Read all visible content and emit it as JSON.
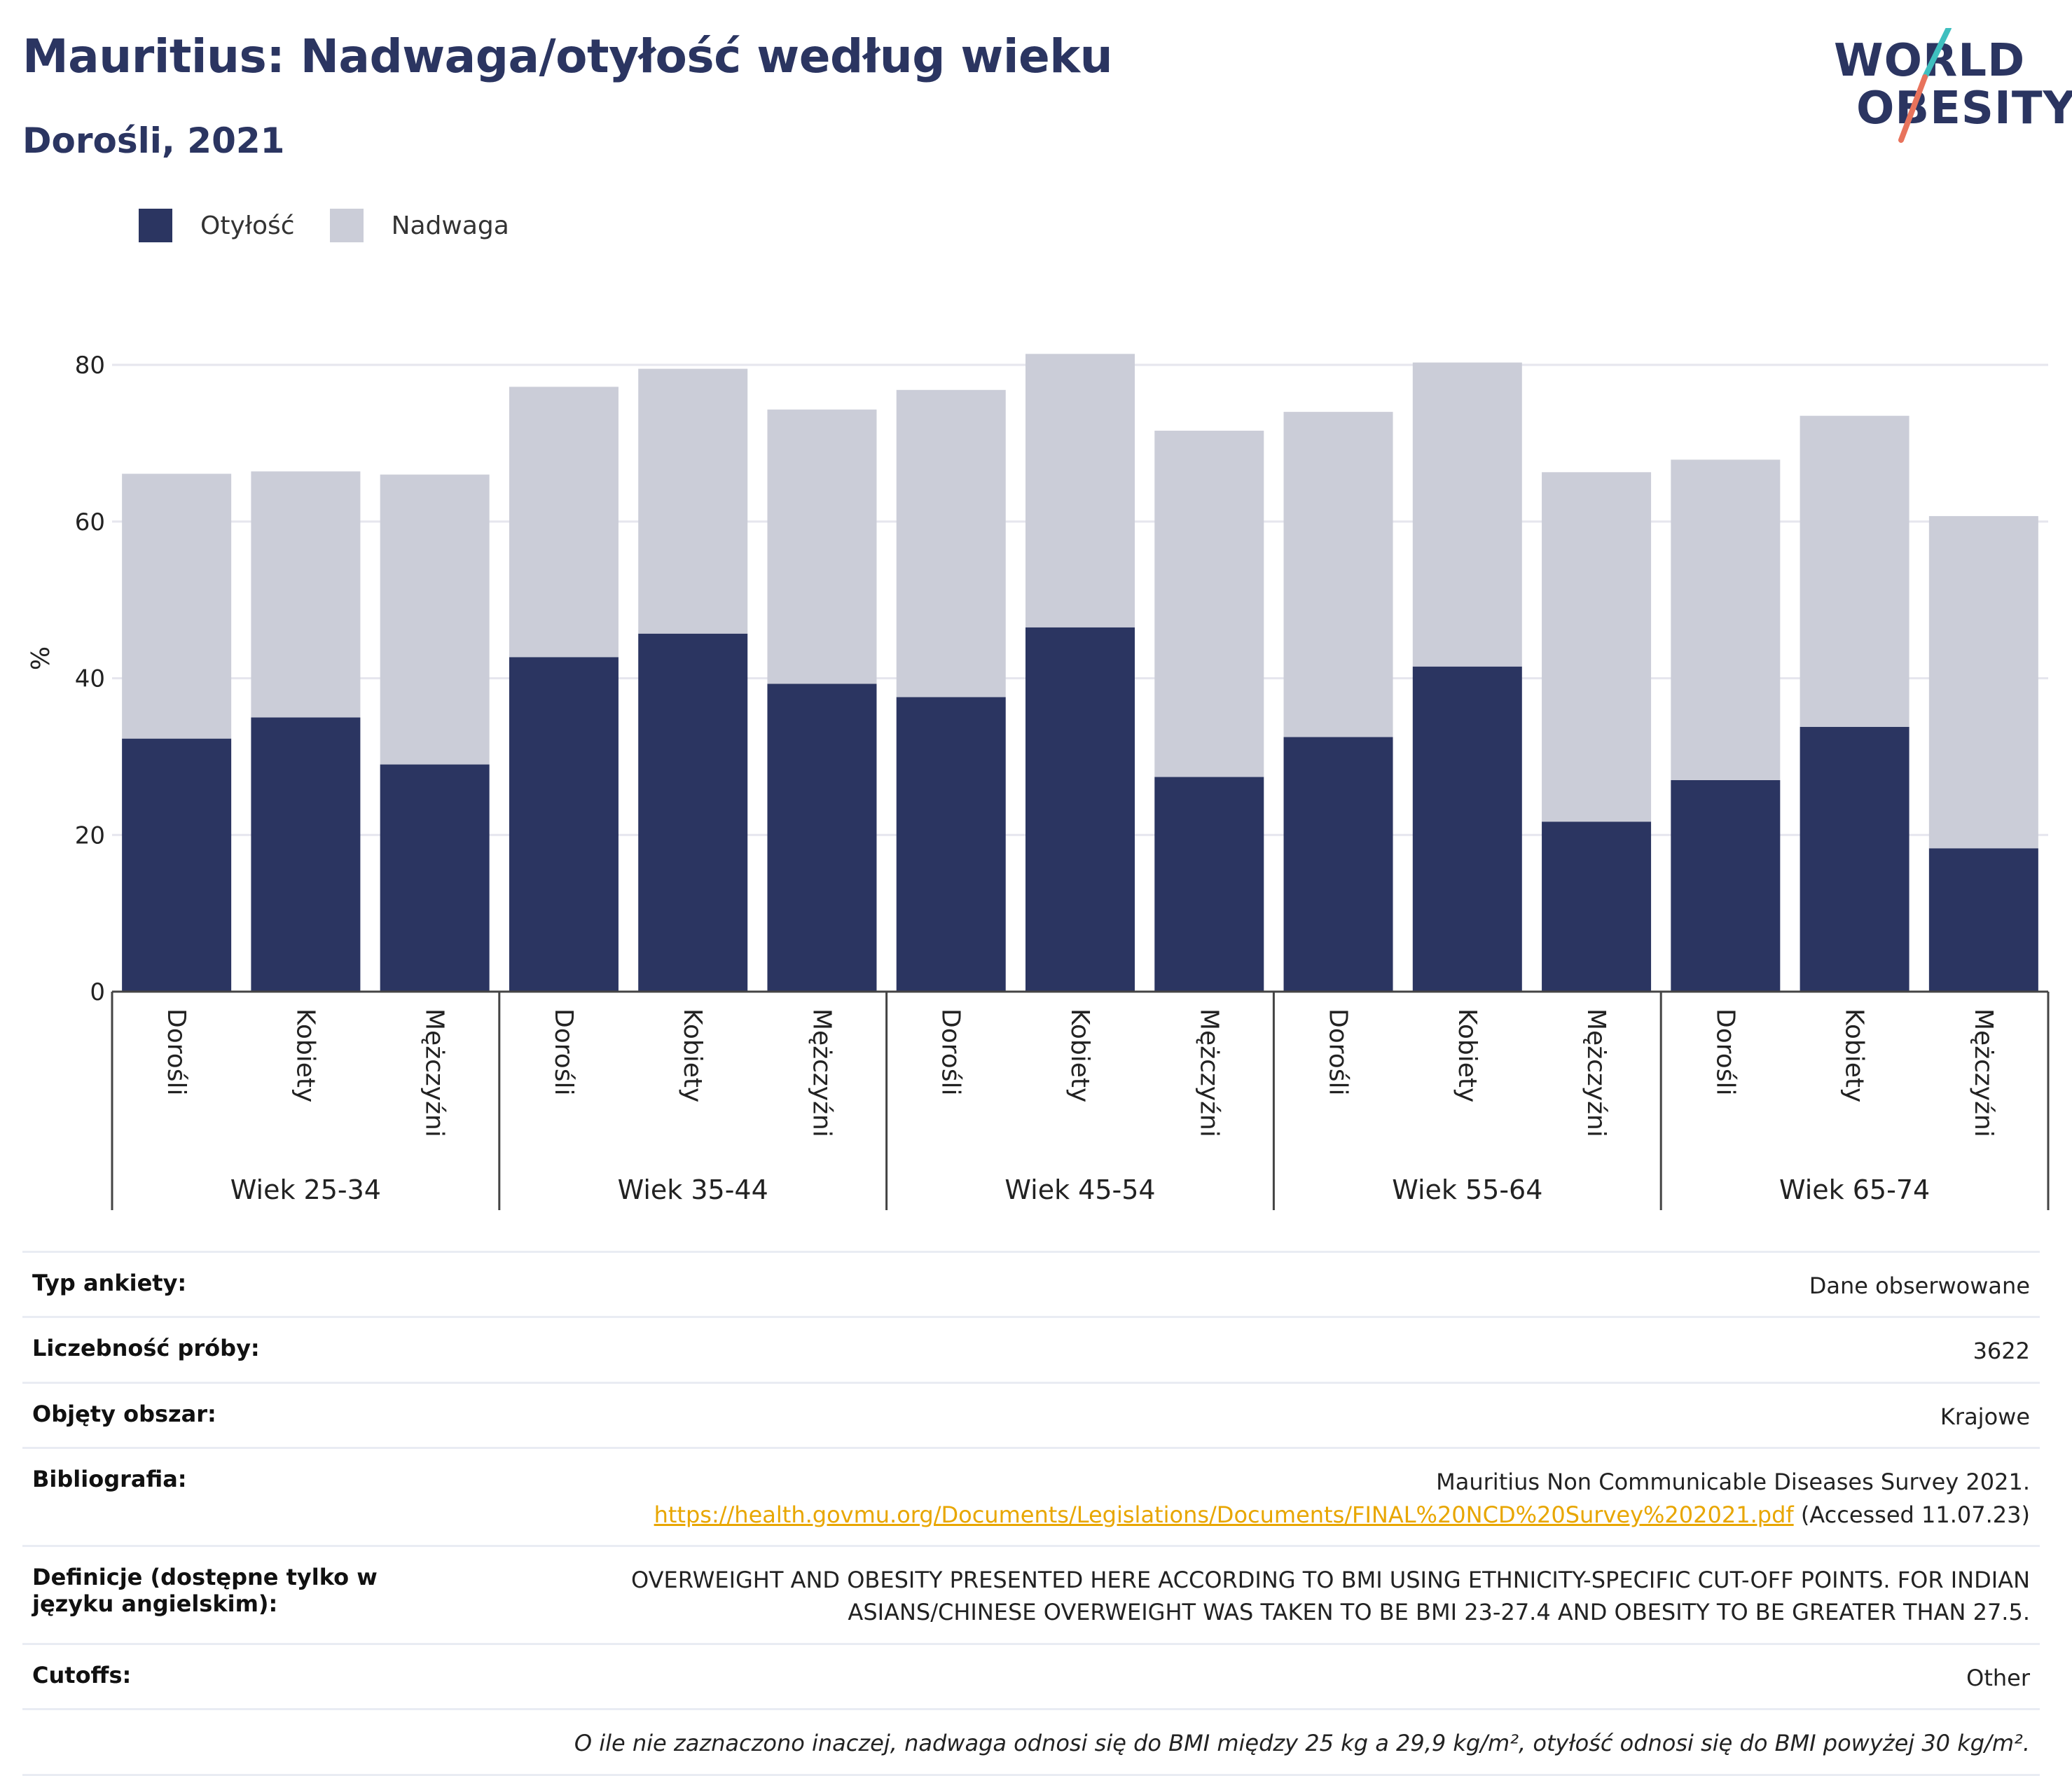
{
  "header": {
    "title": "Mauritius: Nadwaga/otyłość według wieku",
    "subtitle": "Dorośli, 2021"
  },
  "logo": {
    "line1": "WORLD",
    "line2": "OBESITY"
  },
  "legend": [
    {
      "label": "Otyłość",
      "color": "#2b3561"
    },
    {
      "label": "Nadwaga",
      "color": "#cbcdd8"
    }
  ],
  "chart_data": {
    "type": "bar",
    "stacked": true,
    "ylabel": "%",
    "ylim": [
      0,
      82
    ],
    "yticks": [
      0,
      20,
      40,
      60,
      80
    ],
    "grid": true,
    "groups": [
      {
        "label": "Wiek 25-34",
        "categories": [
          "Dorośli",
          "Kobiety",
          "Mężczyźni"
        ]
      },
      {
        "label": "Wiek 35-44",
        "categories": [
          "Dorośli",
          "Kobiety",
          "Mężczyźni"
        ]
      },
      {
        "label": "Wiek 45-54",
        "categories": [
          "Dorośli",
          "Kobiety",
          "Mężczyźni"
        ]
      },
      {
        "label": "Wiek 55-64",
        "categories": [
          "Dorośli",
          "Kobiety",
          "Mężczyźni"
        ]
      },
      {
        "label": "Wiek 65-74",
        "categories": [
          "Dorośli",
          "Kobiety",
          "Mężczyźni"
        ]
      }
    ],
    "series": [
      {
        "name": "Otyłość",
        "color": "#2b3561",
        "values": [
          32.3,
          35.0,
          29.0,
          42.7,
          45.7,
          39.3,
          37.6,
          46.5,
          27.4,
          32.5,
          41.5,
          21.7,
          27.0,
          33.8,
          18.3
        ]
      },
      {
        "name": "Nadwaga",
        "color": "#cbcdd8",
        "values": [
          33.8,
          31.4,
          37.0,
          34.5,
          33.8,
          35.0,
          39.2,
          34.9,
          44.2,
          41.5,
          38.8,
          44.6,
          40.9,
          39.7,
          42.4
        ]
      }
    ]
  },
  "info_table": [
    {
      "key": "Typ ankiety:",
      "value": "Dane obserwowane"
    },
    {
      "key": "Liczebność próby:",
      "value": "3622"
    },
    {
      "key": "Objęty obszar:",
      "value": "Krajowe"
    },
    {
      "key": "Bibliografia:",
      "value": "Mauritius Non Communicable Diseases Survey 2021.",
      "link": "https://health.govmu.org/Documents/Legislations/Documents/FINAL%20NCD%20Survey%202021.pdf",
      "accessed": "(Accessed 11.07.23)"
    },
    {
      "key": "Definicje (dostępne tylko w języku angielskim):",
      "value": "OVERWEIGHT AND OBESITY PRESENTED HERE ACCORDING TO BMI USING ETHNICITY-SPECIFIC CUT-OFF POINTS. FOR INDIAN ASIANS/CHINESE OVERWEIGHT WAS TAKEN TO BE BMI 23-27.4 AND OBESITY TO BE GREATER THAN 27.5."
    },
    {
      "key": "Cutoffs:",
      "value": "Other"
    }
  ],
  "footnote": "O ile nie zaznaczono inaczej, nadwaga odnosi się do BMI między 25 kg a 29,9 kg/m², otyłość odnosi się do BMI powyżej 30 kg/m²."
}
